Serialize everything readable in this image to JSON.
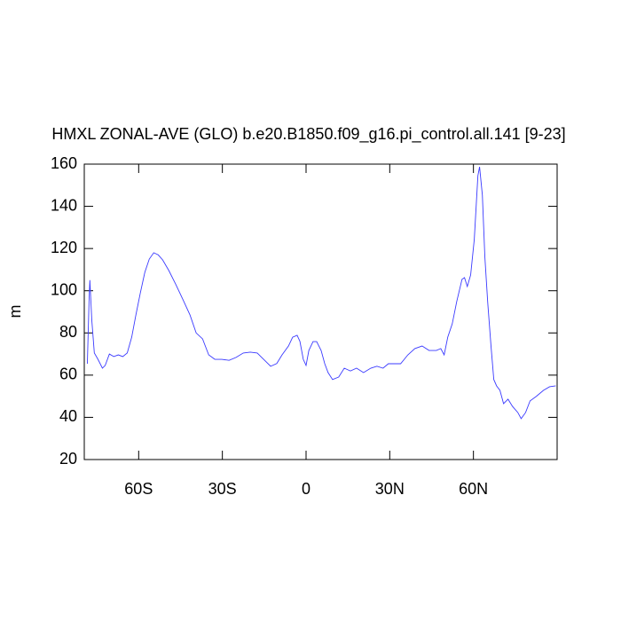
{
  "chart_data": {
    "type": "line",
    "title": "HMXL ZONAL-AVE (GLO) b.e20.B1850.f09_g16.pi_control.all.141 [9-23]",
    "y_label": "m",
    "xlim": [
      -79.5,
      90
    ],
    "ylim": [
      20,
      160
    ],
    "xticks": [
      {
        "value": -60,
        "label": "60S"
      },
      {
        "value": -30,
        "label": "30S"
      },
      0,
      {
        "value": 30,
        "label": "30N"
      },
      {
        "value": 60,
        "label": "60N"
      }
    ],
    "yticks": [
      20,
      40,
      60,
      80,
      100,
      120,
      140,
      160
    ],
    "series": [
      {
        "color": "#3a3aff",
        "x": [
          -78.4,
          -77.8,
          -77.5,
          -76.8,
          -75.9,
          -74.6,
          -73,
          -72,
          -70.5,
          -68.9,
          -67.3,
          -65.7,
          -64.1,
          -62.5,
          -61,
          -59.4,
          -57.8,
          -56.2,
          -54.6,
          -53,
          -51.4,
          -49.2,
          -46.7,
          -44.1,
          -41.6,
          -39.4,
          -37.1,
          -34.9,
          -32.7,
          -30.2,
          -27.6,
          -25.1,
          -22.5,
          -20,
          -17.5,
          -15.2,
          -12.7,
          -10.5,
          -8.6,
          -6.3,
          -4.8,
          -3.2,
          -2.2,
          -1,
          0,
          1,
          2.5,
          3.8,
          5.4,
          6.7,
          7.9,
          9.5,
          11.7,
          13.7,
          15.9,
          18.1,
          20.6,
          23.2,
          25.4,
          27.6,
          29.5,
          31.7,
          33.9,
          36.5,
          39,
          41.6,
          44.1,
          46.7,
          48.3,
          49.5,
          50.8,
          52.4,
          54,
          55.9,
          56.8,
          57.8,
          59,
          60.3,
          61.6,
          62.2,
          63.2,
          64.1,
          65.1,
          66.3,
          67.3,
          68.3,
          69.5,
          70.8,
          72.4,
          74,
          75.9,
          77.1,
          78.7,
          80.3,
          82.5,
          85.1,
          87.3,
          89.5
        ],
        "values": [
          65.4,
          94.8,
          105,
          86,
          70.5,
          67.5,
          63.3,
          64.6,
          70,
          68.8,
          69.6,
          68.8,
          70.5,
          78,
          88.5,
          99,
          108.7,
          115,
          118,
          117,
          114.6,
          109.6,
          103,
          95.7,
          88.5,
          80,
          77.2,
          69.6,
          67.5,
          67.5,
          67,
          68.4,
          70.5,
          70.9,
          70.5,
          67.5,
          64.2,
          65.5,
          69.6,
          73.8,
          78,
          78.9,
          76,
          67.5,
          64.6,
          71.7,
          75.9,
          75.9,
          71.7,
          65.4,
          61.2,
          57.9,
          59.1,
          63.3,
          62,
          63.3,
          61.2,
          63.3,
          64.2,
          63.3,
          65.4,
          65.4,
          65.4,
          69.6,
          72.6,
          73.8,
          71.7,
          71.7,
          72.6,
          69.6,
          78,
          84.3,
          94.8,
          105.4,
          106.2,
          102,
          107.5,
          124.3,
          154.5,
          158.7,
          145.3,
          115.9,
          94.8,
          73.8,
          57.9,
          54.9,
          52.8,
          46.5,
          48.6,
          45.2,
          42.3,
          39.4,
          42.3,
          47.8,
          49.9,
          52.8,
          54.5,
          54.9
        ]
      }
    ]
  }
}
